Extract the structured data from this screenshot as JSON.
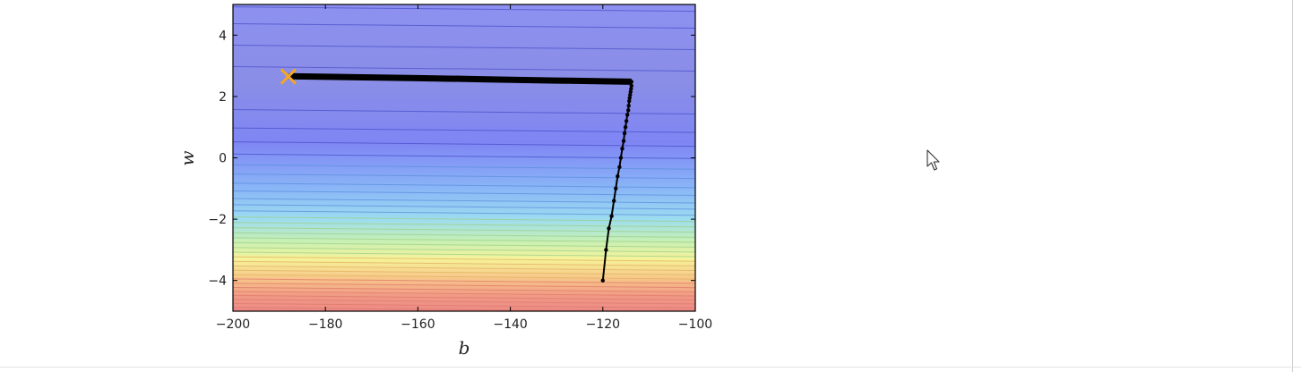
{
  "chart_data": {
    "type": "line",
    "subtype": "contour-with-descent-path",
    "xlabel": "b",
    "ylabel": "w",
    "xlim": [
      -200,
      -100
    ],
    "ylim": [
      -5,
      5
    ],
    "xticks": [
      -200,
      -180,
      -160,
      -140,
      -120,
      -100
    ],
    "yticks": [
      -4,
      -2,
      0,
      2,
      4
    ],
    "xtick_labels": [
      "−200",
      "−180",
      "−160",
      "−140",
      "−120",
      "−100"
    ],
    "ytick_labels": [
      "−4",
      "−2",
      "0",
      "2",
      "4"
    ],
    "grid": false,
    "colormap": "jet (alpha 0.5)",
    "background_gradient": [
      {
        "w": 5.0,
        "color": "#8d90f0"
      },
      {
        "w": 2.5,
        "color": "#8a8ee6"
      },
      {
        "w": 0.5,
        "color": "#7f86f4"
      },
      {
        "w": -1.0,
        "color": "#8ab6f7"
      },
      {
        "w": -2.0,
        "color": "#9cdcf0"
      },
      {
        "w": -2.7,
        "color": "#c6f0b5"
      },
      {
        "w": -3.3,
        "color": "#f6f39a"
      },
      {
        "w": -3.9,
        "color": "#f7c98a"
      },
      {
        "w": -4.5,
        "color": "#f19a86"
      },
      {
        "w": -5.0,
        "color": "#ec8a86"
      }
    ],
    "contour_levels_w": [
      4.85,
      4.3,
      3.6,
      2.9,
      1.5,
      0.9,
      0.45,
      0.05,
      -0.3,
      -0.6,
      -0.9,
      -1.15,
      -1.4,
      -1.6,
      -1.8,
      -2.0,
      -2.18,
      -2.35,
      -2.52,
      -2.68,
      -2.84,
      -3.0,
      -3.15,
      -3.3,
      -3.45,
      -3.6,
      -3.74,
      -3.88,
      -4.02,
      -4.16,
      -4.3,
      -4.43,
      -4.56,
      -4.69,
      -4.82,
      -4.95
    ],
    "contour_tilt": 0.25,
    "series": [
      {
        "x": [
          -120.0,
          -119.3,
          -118.7,
          -118.1,
          -117.6,
          -117.2,
          -116.8,
          -116.4,
          -116.1,
          -115.8,
          -115.5,
          -115.3,
          -115.1,
          -114.9,
          -114.7,
          -114.5,
          -114.4,
          -114.3,
          -114.2,
          -114.1,
          -114.0,
          -113.9,
          -113.8,
          -113.8,
          -130,
          -145,
          -160,
          -175,
          -187.9
        ],
        "y": [
          -4.0,
          -3.0,
          -2.3,
          -1.9,
          -1.4,
          -1.0,
          -0.6,
          -0.3,
          0.0,
          0.3,
          0.55,
          0.8,
          1.0,
          1.2,
          1.4,
          1.55,
          1.7,
          1.85,
          1.95,
          2.05,
          2.15,
          2.25,
          2.35,
          2.48,
          2.52,
          2.56,
          2.6,
          2.63,
          2.66
        ]
      }
    ],
    "marker": {
      "x": -188,
      "y": 2.65,
      "symbol": "x",
      "color": "#f5a623"
    }
  }
}
